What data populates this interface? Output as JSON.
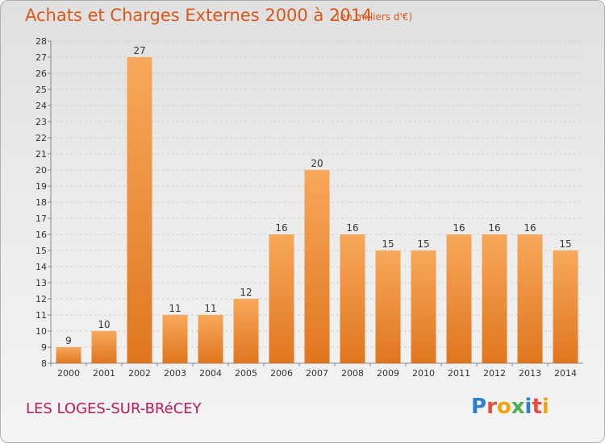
{
  "header": {
    "title": "Achats et Charges Externes 2000 à 2014",
    "subtitle": "(en milliers d'€)"
  },
  "footer": {
    "commune": "LES LOGES-SUR-BRéCEY",
    "logo": "Proxiti"
  },
  "colors": {
    "bar": "#f0882e",
    "bar_top": "#f7a85a",
    "title": "#d9571a",
    "commune": "#c2185b"
  },
  "chart_data": {
    "type": "bar",
    "title": "Achats et Charges Externes 2000 à 2014",
    "subtitle": "(en milliers d'€)",
    "categories": [
      "2000",
      "2001",
      "2002",
      "2003",
      "2004",
      "2005",
      "2006",
      "2007",
      "2008",
      "2009",
      "2010",
      "2011",
      "2012",
      "2013",
      "2014"
    ],
    "values": [
      9,
      10,
      27,
      11,
      11,
      12,
      16,
      20,
      16,
      15,
      15,
      16,
      16,
      16,
      15
    ],
    "ylim": [
      8,
      28
    ],
    "yticks": [
      8,
      9,
      10,
      11,
      12,
      13,
      14,
      15,
      16,
      17,
      18,
      19,
      20,
      21,
      22,
      23,
      24,
      25,
      26,
      27,
      28
    ],
    "grid": true,
    "legend": "none"
  }
}
